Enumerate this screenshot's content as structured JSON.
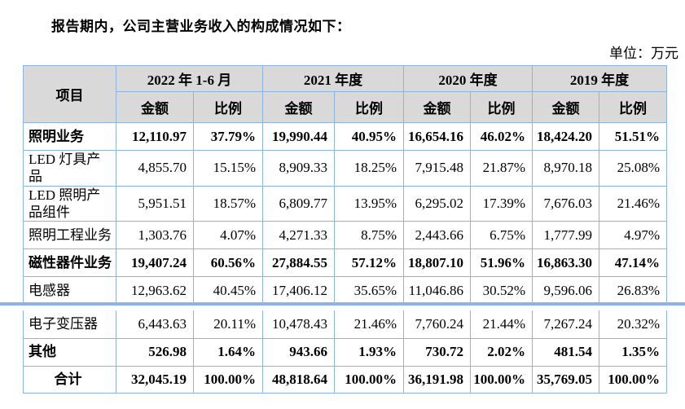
{
  "page": {
    "intro_text": "报告期内，公司主营业务收入的构成情况如下：",
    "unit_label": "单位：万元"
  },
  "colors": {
    "border": "#8db3e2",
    "header_bg": "#d9d9d9"
  },
  "table": {
    "item_header": "项目",
    "amount_label": "金额",
    "ratio_label": "比例",
    "period_headers": [
      "2022 年 1-6 月",
      "2021 年度",
      "2020 年度",
      "2019 年度"
    ],
    "rows_upper": [
      {
        "item": "照明业务",
        "bold": true,
        "center": false,
        "values": [
          "12,110.97",
          "37.79%",
          "19,990.44",
          "40.95%",
          "16,654.16",
          "46.02%",
          "18,424.20",
          "51.51%"
        ]
      },
      {
        "item": "LED 灯具产品",
        "bold": false,
        "center": false,
        "values": [
          "4,855.70",
          "15.15%",
          "8,909.33",
          "18.25%",
          "7,915.48",
          "21.87%",
          "8,970.18",
          "25.08%"
        ]
      },
      {
        "item": "LED 照明产品组件",
        "bold": false,
        "center": false,
        "values": [
          "5,951.51",
          "18.57%",
          "6,809.77",
          "13.95%",
          "6,295.02",
          "17.39%",
          "7,676.03",
          "21.46%"
        ]
      },
      {
        "item": "照明工程业务",
        "bold": false,
        "center": false,
        "values": [
          "1,303.76",
          "4.07%",
          "4,271.33",
          "8.75%",
          "2,443.66",
          "6.75%",
          "1,777.99",
          "4.97%"
        ]
      },
      {
        "item": "磁性器件业务",
        "bold": true,
        "center": false,
        "values": [
          "19,407.24",
          "60.56%",
          "27,884.55",
          "57.12%",
          "18,807.10",
          "51.96%",
          "16,863.30",
          "47.14%"
        ]
      },
      {
        "item": "电感器",
        "bold": false,
        "center": false,
        "values": [
          "12,963.62",
          "40.45%",
          "17,406.12",
          "35.65%",
          "11,046.86",
          "30.52%",
          "9,596.06",
          "26.83%"
        ]
      }
    ],
    "rows_lower": [
      {
        "item": "电子变压器",
        "bold": false,
        "center": false,
        "values": [
          "6,443.63",
          "20.11%",
          "10,478.43",
          "21.46%",
          "7,760.24",
          "21.44%",
          "7,267.24",
          "20.32%"
        ]
      },
      {
        "item": "其他",
        "bold": true,
        "center": false,
        "values": [
          "526.98",
          "1.64%",
          "943.66",
          "1.93%",
          "730.72",
          "2.02%",
          "481.54",
          "1.35%"
        ]
      },
      {
        "item": "合计",
        "bold": true,
        "center": true,
        "values": [
          "32,045.19",
          "100.00%",
          "48,818.64",
          "100.00%",
          "36,191.98",
          "100.00%",
          "35,769.05",
          "100.00%"
        ]
      }
    ]
  }
}
